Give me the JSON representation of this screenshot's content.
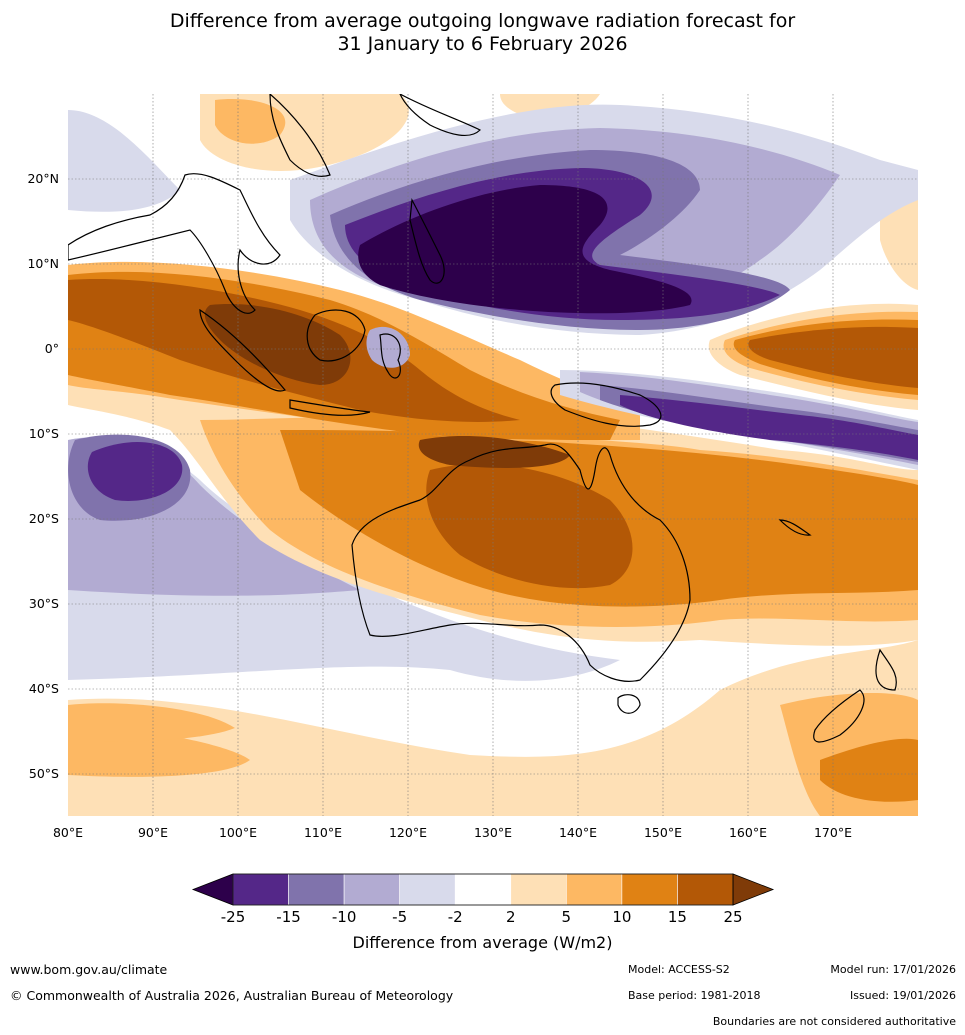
{
  "title_line1": "Difference from average outgoing longwave radiation forecast for",
  "title_line2": "31 January to 6 February 2026",
  "lat_labels": [
    "20°N",
    "10°N",
    "0°",
    "10°S",
    "20°S",
    "30°S",
    "40°S",
    "50°S"
  ],
  "lon_labels": [
    "80°E",
    "90°E",
    "100°E",
    "110°E",
    "120°E",
    "130°E",
    "140°E",
    "150°E",
    "160°E",
    "170°E"
  ],
  "map_extent": {
    "lon_min": 80,
    "lon_max": 180,
    "lat_min": -55,
    "lat_max": 30
  },
  "colorbar": {
    "ticks": [
      "-25",
      "-15",
      "-10",
      "-5",
      "-2",
      "2",
      "5",
      "10",
      "15",
      "25"
    ],
    "colors": [
      "#2d004b",
      "#542788",
      "#8073ac",
      "#b2abd2",
      "#d8daeb",
      "#ffffff",
      "#fee0b6",
      "#fdb863",
      "#e08214",
      "#b35806",
      "#7f3b08"
    ],
    "label": "Difference from average (W/m2)"
  },
  "footer": {
    "website": "www.bom.gov.au/climate",
    "copyright": "© Commonwealth of Australia 2026, Australian Bureau of Meteorology",
    "model": "Model: ACCESS-S2",
    "base_period": "Base period: 1981-2018",
    "model_run": "Model run: 17/01/2026",
    "issued": "Issued: 19/01/2026",
    "disclaimer": "Boundaries are not considered authoritative"
  }
}
